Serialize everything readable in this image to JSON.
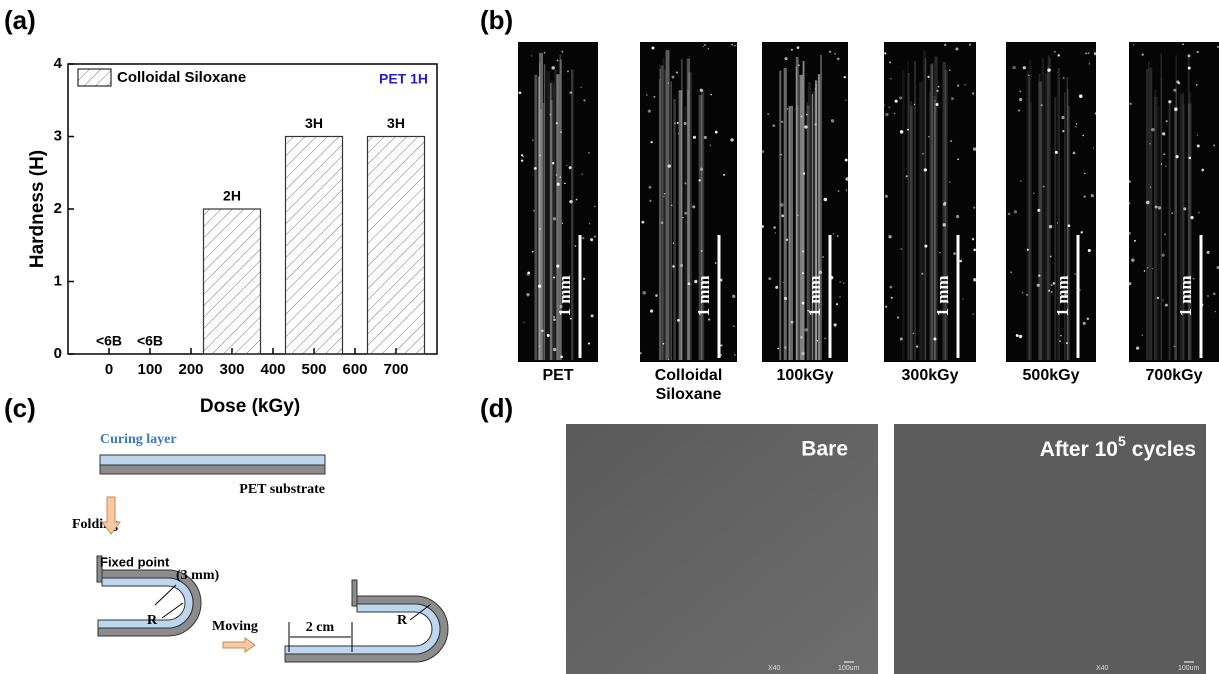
{
  "panel_labels": [
    "(a)",
    "(b)",
    "(c)",
    "(d)"
  ],
  "chart_data": {
    "type": "bar",
    "x": [
      0,
      100,
      300,
      500,
      700
    ],
    "series": [
      {
        "name": "Colloidal Siloxane",
        "color": "#333333",
        "values": [
          0,
          0,
          2,
          3,
          3
        ],
        "value_labels": [
          "<6B",
          "<6B",
          "2H",
          "3H",
          "3H"
        ]
      }
    ],
    "xlabel": "Dose (kGy)",
    "ylabel": "Hardness (H)",
    "annotation": "PET 1H",
    "xlim": [
      -100,
      800
    ],
    "xticks": [
      0,
      100,
      200,
      300,
      400,
      500,
      600,
      700
    ],
    "ylim": [
      0,
      4
    ],
    "yticks": [
      0,
      1,
      2,
      3,
      4
    ],
    "legend": "upper left"
  },
  "micrographs": [
    {
      "label": "PET",
      "scale_bar": "1 mm"
    },
    {
      "label": "Colloidal Siloxane",
      "scale_bar": "1 mm"
    },
    {
      "label": "100kGy",
      "scale_bar": "1 mm"
    },
    {
      "label": "300kGy",
      "scale_bar": "1 mm"
    },
    {
      "label": "500kGy",
      "scale_bar": "1 mm"
    },
    {
      "label": "700kGy",
      "scale_bar": "1 mm"
    }
  ],
  "diagram": {
    "curing_layer": "Curing layer",
    "substrate": "PET substrate",
    "folding": "Folding",
    "fixed_point": "Fixed point",
    "radius_value": "(3 mm)",
    "radius_left": "R",
    "moving": "Moving",
    "distance": "2 cm",
    "radius_right": "R"
  },
  "sem": [
    {
      "text": "Bare",
      "magnification": "X40",
      "scale_bar": "100um"
    },
    {
      "text": "After 10",
      "sup": "5",
      "tail": "cycles",
      "magnification": "X40",
      "scale_bar": "100um"
    }
  ]
}
